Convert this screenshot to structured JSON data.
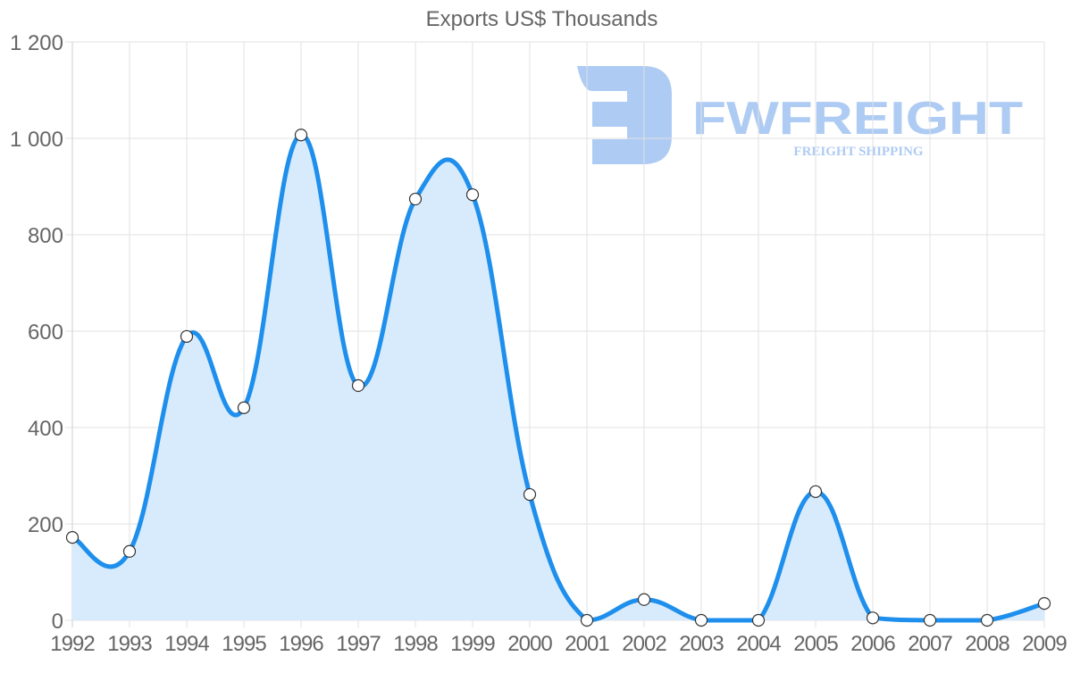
{
  "chart_data": {
    "type": "line",
    "title": "Exports US$ Thousands",
    "xlabel": "",
    "ylabel": "",
    "categories": [
      "1992",
      "1993",
      "1994",
      "1995",
      "1996",
      "1997",
      "1998",
      "1999",
      "2000",
      "2001",
      "2002",
      "2003",
      "2004",
      "2005",
      "2006",
      "2007",
      "2008",
      "2009"
    ],
    "series": [
      {
        "name": "Exports US$ Thousands",
        "values": [
          172,
          143,
          589,
          441,
          1007,
          487,
          874,
          883,
          261,
          0,
          43,
          0,
          0,
          267,
          5,
          0,
          0,
          35
        ],
        "color": "#1e8fec",
        "fill": "#d8ebfc"
      }
    ],
    "ylim": [
      0,
      1200
    ],
    "yticks": [
      0,
      200,
      400,
      600,
      800,
      1000,
      1200
    ],
    "ytick_labels": [
      "0",
      "200",
      "400",
      "600",
      "800",
      "1 000",
      "1 200"
    ],
    "grid": true,
    "legend": "none"
  },
  "watermark": {
    "brand": "FWFREIGHT",
    "tagline": "FREIGHT SHIPPING",
    "color": "#aecbf3"
  }
}
